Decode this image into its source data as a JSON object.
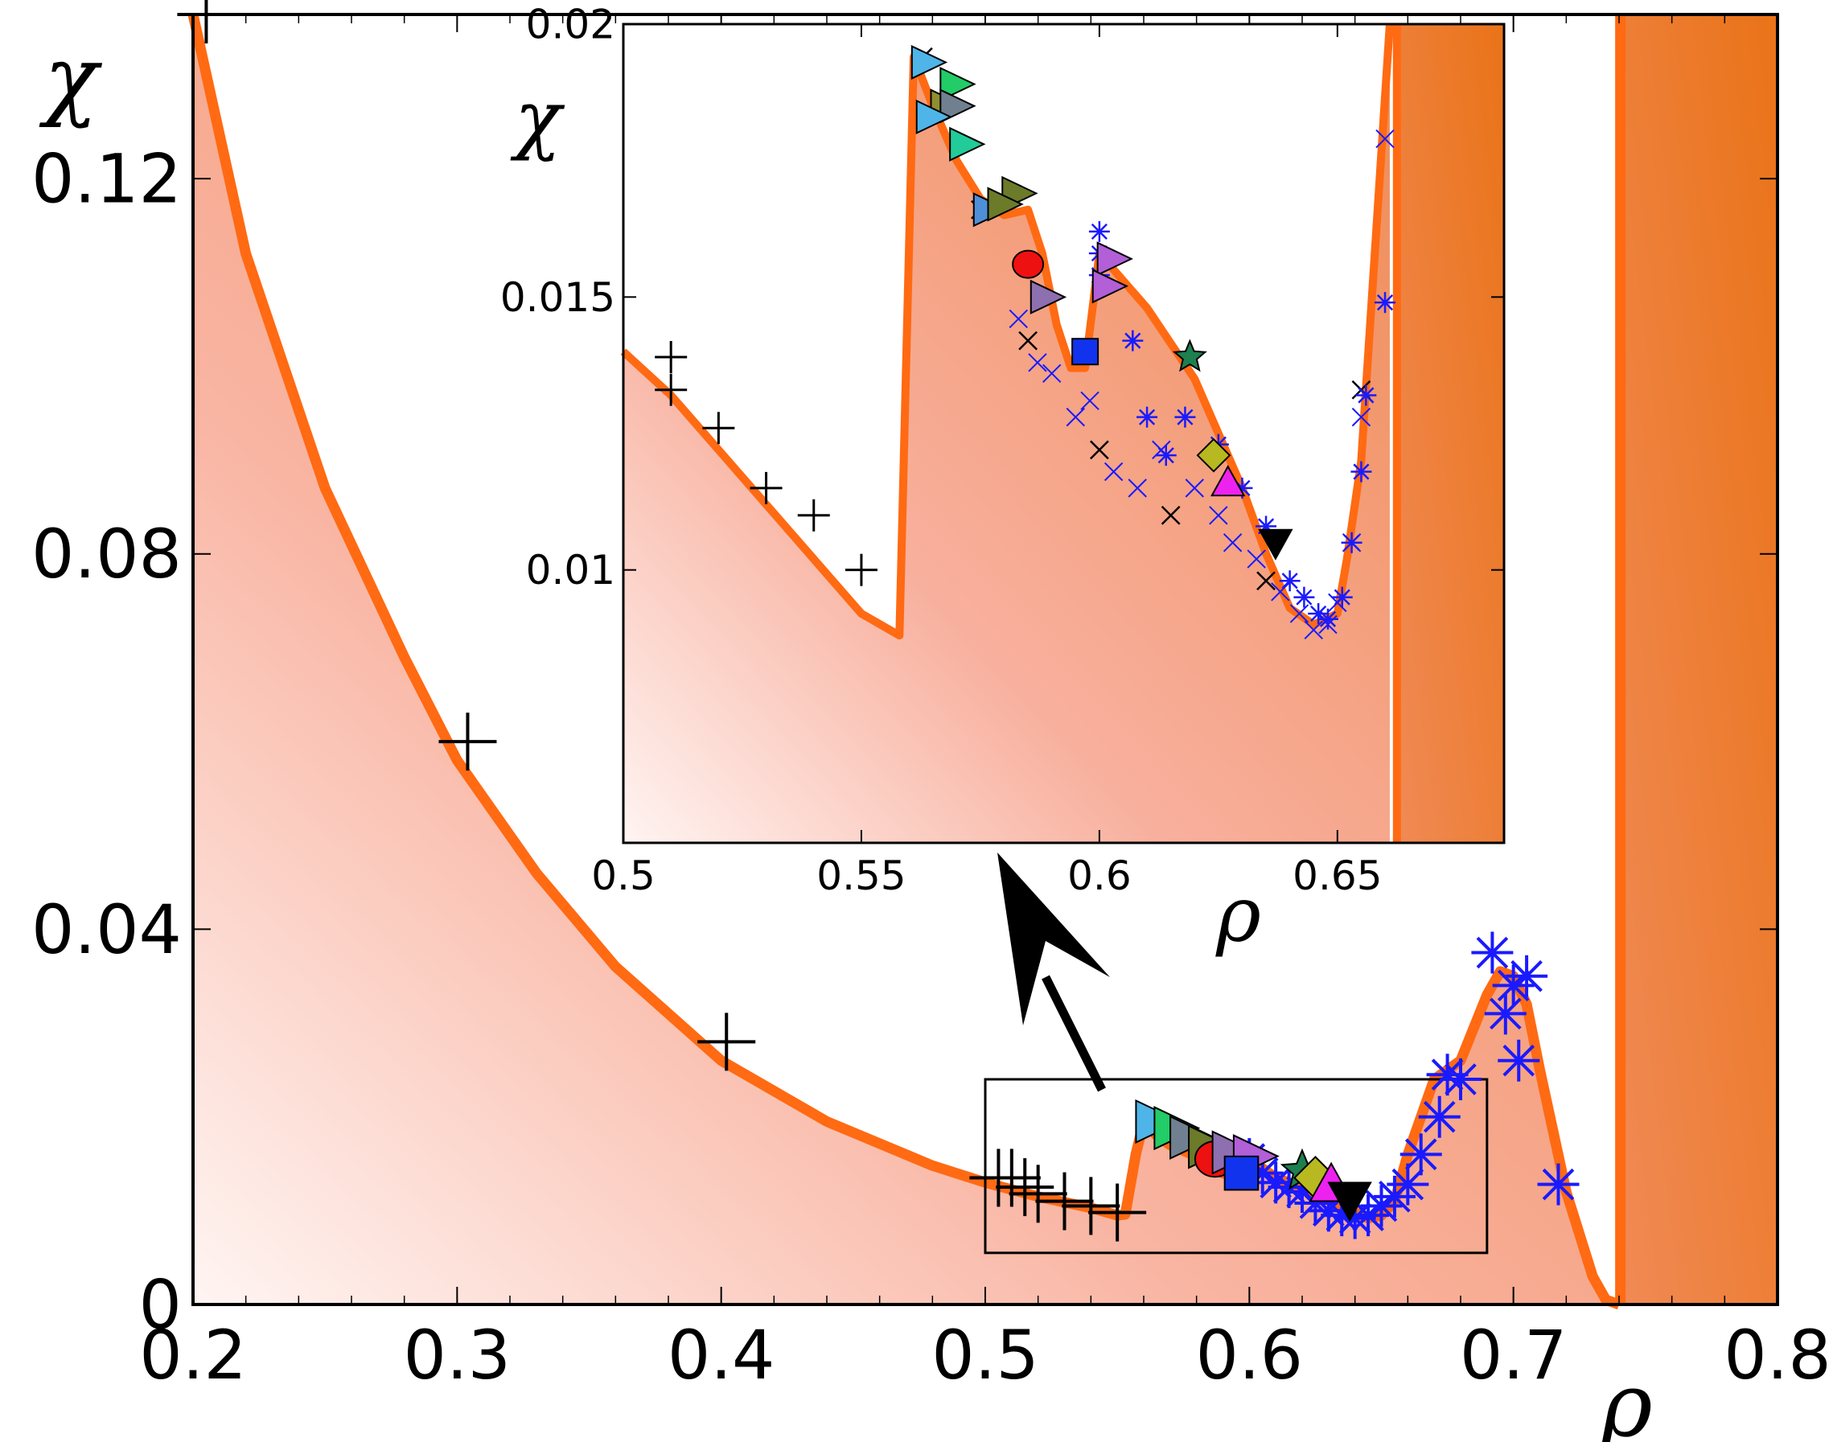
{
  "chart_data": [
    {
      "id": "main",
      "type": "line",
      "xlabel": "ρ",
      "ylabel": "χ",
      "xlim": [
        0.2,
        0.8
      ],
      "ylim": [
        0,
        0.1375
      ],
      "xticks": [
        0.2,
        0.3,
        0.4,
        0.5,
        0.6,
        0.7,
        0.8
      ],
      "xtick_labels": [
        "0.2",
        "0.3",
        "0.4",
        "0.5",
        "0.6",
        "0.7",
        "0.8"
      ],
      "yticks": [
        0,
        0.04,
        0.08,
        0.12
      ],
      "ytick_labels": [
        "0",
        "0.04",
        "0.08",
        "0.12"
      ],
      "grid": false,
      "colors": {
        "curve": "#ff6a13",
        "fill_light": "#fff3f1",
        "fill_dark": "#f0874f",
        "block": "#ee7a2a",
        "plus": "#000000",
        "star": "#1a1aff"
      },
      "curve": {
        "x": [
          0.2,
          0.22,
          0.25,
          0.28,
          0.3,
          0.33,
          0.36,
          0.4,
          0.44,
          0.48,
          0.5,
          0.52,
          0.54,
          0.55,
          0.553,
          0.557,
          0.56,
          0.565,
          0.57,
          0.58,
          0.59,
          0.6,
          0.61,
          0.62,
          0.63,
          0.64,
          0.645,
          0.65,
          0.655,
          0.66,
          0.67,
          0.68,
          0.69,
          0.695,
          0.7,
          0.705,
          0.71,
          0.72,
          0.73,
          0.735,
          0.74
        ],
        "y": [
          0.1375,
          0.112,
          0.087,
          0.069,
          0.058,
          0.046,
          0.036,
          0.026,
          0.0195,
          0.0148,
          0.013,
          0.0115,
          0.0103,
          0.0095,
          0.0096,
          0.016,
          0.0195,
          0.018,
          0.017,
          0.0158,
          0.014,
          0.0155,
          0.0135,
          0.0125,
          0.0113,
          0.0098,
          0.0092,
          0.0095,
          0.011,
          0.016,
          0.024,
          0.026,
          0.033,
          0.0355,
          0.035,
          0.032,
          0.025,
          0.012,
          0.003,
          0.0005,
          0.0
        ]
      },
      "block": {
        "x_start": 0.7405,
        "x_end": 0.8,
        "y_top": 0.1375
      },
      "inset_box": {
        "x": [
          0.5,
          0.69
        ],
        "y": [
          0.0055,
          0.024
        ]
      },
      "markers": {
        "plus": [
          [
            0.205,
            0.1375
          ],
          [
            0.304,
            0.06
          ],
          [
            0.402,
            0.028
          ],
          [
            0.505,
            0.0135
          ],
          [
            0.51,
            0.0135
          ],
          [
            0.515,
            0.0125
          ],
          [
            0.52,
            0.0118
          ],
          [
            0.53,
            0.011
          ],
          [
            0.54,
            0.0105
          ],
          [
            0.55,
            0.0098
          ]
        ],
        "star": [
          [
            0.675,
            0.0245
          ],
          [
            0.68,
            0.024
          ],
          [
            0.692,
            0.0375
          ],
          [
            0.7,
            0.034
          ],
          [
            0.705,
            0.035
          ],
          [
            0.697,
            0.031
          ],
          [
            0.702,
            0.026
          ],
          [
            0.717,
            0.0128
          ],
          [
            0.672,
            0.02
          ],
          [
            0.665,
            0.016
          ],
          [
            0.66,
            0.0128
          ],
          [
            0.655,
            0.0115
          ],
          [
            0.65,
            0.0105
          ],
          [
            0.645,
            0.0095
          ],
          [
            0.64,
            0.0092
          ],
          [
            0.635,
            0.0095
          ],
          [
            0.63,
            0.01
          ],
          [
            0.625,
            0.0108
          ],
          [
            0.62,
            0.012
          ],
          [
            0.615,
            0.0125
          ],
          [
            0.61,
            0.013
          ],
          [
            0.605,
            0.014
          ],
          [
            0.6,
            0.0155
          ]
        ],
        "cluster": [
          {
            "shape": "tri-right",
            "color": "#4fb4e8",
            "x": 0.565,
            "y": 0.0195
          },
          {
            "shape": "tri-right",
            "color": "#22cc66",
            "x": 0.572,
            "y": 0.0188
          },
          {
            "shape": "tri-right",
            "color": "#708090",
            "x": 0.578,
            "y": 0.0178
          },
          {
            "shape": "tri-right",
            "color": "#6b7b2a",
            "x": 0.585,
            "y": 0.0168
          },
          {
            "shape": "circle",
            "color": "#ee1111",
            "x": 0.587,
            "y": 0.0155
          },
          {
            "shape": "tri-right",
            "color": "#8e6fb0",
            "x": 0.594,
            "y": 0.0162
          },
          {
            "shape": "tri-right",
            "color": "#b25fd8",
            "x": 0.602,
            "y": 0.0158
          },
          {
            "shape": "square",
            "color": "#1133ee",
            "x": 0.597,
            "y": 0.014
          },
          {
            "shape": "star5",
            "color": "#1e7f4f",
            "x": 0.62,
            "y": 0.0142
          },
          {
            "shape": "diamond",
            "color": "#b8b820",
            "x": 0.625,
            "y": 0.0135
          },
          {
            "shape": "tri-up",
            "color": "#ee22ee",
            "x": 0.631,
            "y": 0.0128
          },
          {
            "shape": "tri-down",
            "color": "#000000",
            "x": 0.638,
            "y": 0.0112
          }
        ]
      }
    },
    {
      "id": "inset",
      "type": "line",
      "xlabel": "ρ",
      "ylabel": "χ",
      "xlim": [
        0.5,
        0.685
      ],
      "ylim": [
        0.005,
        0.02
      ],
      "xticks": [
        0.5,
        0.55,
        0.6,
        0.65
      ],
      "xtick_labels": [
        "0.5",
        "0.55",
        "0.6",
        "0.65"
      ],
      "yticks": [
        0.01,
        0.015,
        0.02
      ],
      "ytick_labels": [
        "0.01",
        "0.015",
        "0.02"
      ],
      "grid": false,
      "curve": {
        "x": [
          0.5,
          0.51,
          0.52,
          0.53,
          0.54,
          0.55,
          0.558,
          0.561,
          0.565,
          0.57,
          0.575,
          0.58,
          0.585,
          0.588,
          0.591,
          0.594,
          0.597,
          0.6,
          0.603,
          0.61,
          0.62,
          0.63,
          0.635,
          0.64,
          0.645,
          0.65,
          0.652,
          0.655,
          0.658,
          0.661
        ],
        "y": [
          0.014,
          0.0132,
          0.0122,
          0.0112,
          0.0102,
          0.0092,
          0.0088,
          0.0194,
          0.0185,
          0.0175,
          0.0168,
          0.0165,
          0.0166,
          0.0158,
          0.0145,
          0.0137,
          0.0137,
          0.0158,
          0.0155,
          0.0148,
          0.0135,
          0.0115,
          0.0103,
          0.0093,
          0.009,
          0.0092,
          0.0102,
          0.012,
          0.016,
          0.02
        ]
      },
      "block": {
        "x_start": 0.6625,
        "x_end": 0.685,
        "y_top": 0.02
      },
      "markers": {
        "plus": [
          [
            0.51,
            0.0139
          ],
          [
            0.51,
            0.0133
          ],
          [
            0.52,
            0.0126
          ],
          [
            0.53,
            0.0115
          ],
          [
            0.54,
            0.011
          ],
          [
            0.55,
            0.01
          ]
        ],
        "xmark_black": [
          [
            0.563,
            0.0194
          ],
          [
            0.575,
            0.0166
          ],
          [
            0.585,
            0.0142
          ],
          [
            0.6,
            0.0122
          ],
          [
            0.615,
            0.011
          ],
          [
            0.635,
            0.0098
          ],
          [
            0.655,
            0.0133
          ]
        ],
        "xmark_blue": [
          [
            0.583,
            0.0146
          ],
          [
            0.587,
            0.0138
          ],
          [
            0.59,
            0.0136
          ],
          [
            0.595,
            0.0128
          ],
          [
            0.598,
            0.0131
          ],
          [
            0.603,
            0.0118
          ],
          [
            0.608,
            0.0115
          ],
          [
            0.613,
            0.0122
          ],
          [
            0.62,
            0.0115
          ],
          [
            0.625,
            0.011
          ],
          [
            0.628,
            0.0105
          ],
          [
            0.633,
            0.0102
          ],
          [
            0.638,
            0.0096
          ],
          [
            0.642,
            0.0092
          ],
          [
            0.645,
            0.0089
          ],
          [
            0.648,
            0.009
          ],
          [
            0.65,
            0.0094
          ],
          [
            0.653,
            0.0105
          ],
          [
            0.655,
            0.0128
          ],
          [
            0.66,
            0.0179
          ]
        ],
        "star_blue": [
          [
            0.6,
            0.0162
          ],
          [
            0.6,
            0.0158
          ],
          [
            0.6,
            0.0154
          ],
          [
            0.607,
            0.0142
          ],
          [
            0.61,
            0.0128
          ],
          [
            0.614,
            0.0121
          ],
          [
            0.618,
            0.0128
          ],
          [
            0.625,
            0.0123
          ],
          [
            0.63,
            0.0115
          ],
          [
            0.635,
            0.0108
          ],
          [
            0.64,
            0.0098
          ],
          [
            0.643,
            0.0095
          ],
          [
            0.646,
            0.0092
          ],
          [
            0.648,
            0.0091
          ],
          [
            0.651,
            0.0095
          ],
          [
            0.653,
            0.0105
          ],
          [
            0.655,
            0.0118
          ],
          [
            0.656,
            0.0132
          ],
          [
            0.66,
            0.0149
          ]
        ],
        "cluster": [
          {
            "shape": "tri-right",
            "color": "#4fb4e8",
            "x": 0.564,
            "y": 0.0193
          },
          {
            "shape": "tri-right",
            "color": "#22cc66",
            "x": 0.57,
            "y": 0.0189
          },
          {
            "shape": "tri-right",
            "color": "#8f8f30",
            "x": 0.568,
            "y": 0.0185
          },
          {
            "shape": "tri-right",
            "color": "#708090",
            "x": 0.57,
            "y": 0.0185
          },
          {
            "shape": "tri-right",
            "color": "#4fb4e8",
            "x": 0.565,
            "y": 0.0183
          },
          {
            "shape": "tri-right",
            "color": "#22cc99",
            "x": 0.572,
            "y": 0.0178
          },
          {
            "shape": "tri-right",
            "color": "#4f8fd8",
            "x": 0.577,
            "y": 0.0166
          },
          {
            "shape": "tri-right",
            "color": "#6b7b2a",
            "x": 0.583,
            "y": 0.0169
          },
          {
            "shape": "tri-right",
            "color": "#6b7b2a",
            "x": 0.58,
            "y": 0.0167
          },
          {
            "shape": "circle",
            "color": "#ee1111",
            "x": 0.585,
            "y": 0.0156
          },
          {
            "shape": "tri-right",
            "color": "#8e6fb0",
            "x": 0.589,
            "y": 0.015
          },
          {
            "shape": "tri-right",
            "color": "#b25fd8",
            "x": 0.603,
            "y": 0.0157
          },
          {
            "shape": "tri-right",
            "color": "#b25fd8",
            "x": 0.602,
            "y": 0.0152
          },
          {
            "shape": "square",
            "color": "#1133ee",
            "x": 0.597,
            "y": 0.014
          },
          {
            "shape": "star5",
            "color": "#1e7f4f",
            "x": 0.619,
            "y": 0.0139
          },
          {
            "shape": "diamond",
            "color": "#b8b820",
            "x": 0.624,
            "y": 0.0121
          },
          {
            "shape": "tri-up",
            "color": "#ee22ee",
            "x": 0.627,
            "y": 0.0116
          },
          {
            "shape": "tri-down",
            "color": "#000000",
            "x": 0.637,
            "y": 0.0105
          }
        ]
      }
    }
  ]
}
